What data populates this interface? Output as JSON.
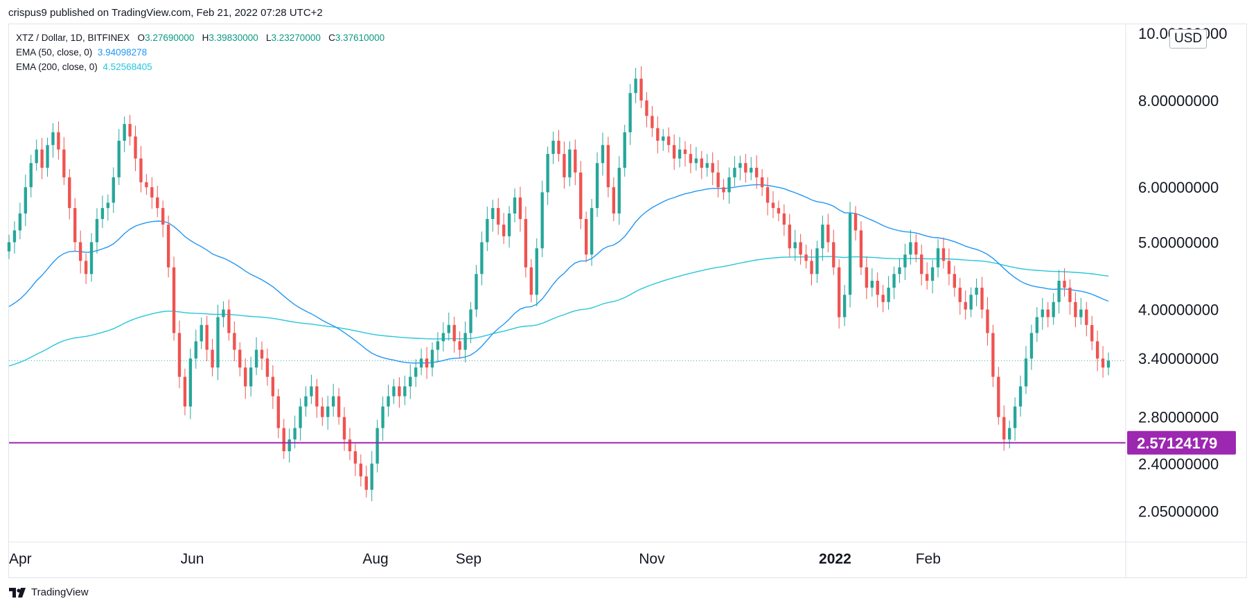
{
  "header": {
    "publisher_line": "crispus9 published on TradingView.com, Feb 21, 2022 07:28 UTC+2"
  },
  "legend": {
    "symbol": "XTZ / Dollar, 1D, BITFINEX",
    "open_label": "O",
    "open": "3.27690000",
    "high_label": "H",
    "high": "3.39830000",
    "low_label": "L",
    "low": "3.23270000",
    "close_label": "C",
    "close": "3.37610000",
    "ema50_label": "EMA (50, close, 0)",
    "ema50_value": "3.94098278",
    "ema200_label": "EMA (200, close, 0)",
    "ema200_value": "4.52568405"
  },
  "currency_button": "USD",
  "brand": {
    "name": "TradingView"
  },
  "colors": {
    "up": "#26a69a",
    "down": "#ef5350",
    "ema50": "#2196f3",
    "ema200": "#26c6da",
    "support": "#9c27b0",
    "last_price_line": "#26a69a"
  },
  "chart_data": {
    "type": "candlestick",
    "y_scale": "log",
    "y_ticks": [
      "10.00000000",
      "8.00000000",
      "6.00000000",
      "5.00000000",
      "4.00000000",
      "3.40000000",
      "2.80000000",
      "2.40000000",
      "2.05000000"
    ],
    "x_ticks": [
      "Apr",
      "Jun",
      "Aug",
      "Sep",
      "Nov",
      "2022",
      "Feb"
    ],
    "ylim": [
      1.85,
      10.3
    ],
    "horizontal_level": {
      "value": 2.57124179,
      "label": "2.57124179"
    },
    "last_close": 3.3761,
    "closes": [
      5.0,
      5.2,
      5.5,
      6.0,
      6.5,
      6.8,
      6.4,
      6.9,
      7.2,
      6.8,
      6.2,
      5.6,
      5.0,
      4.7,
      4.5,
      5.0,
      5.4,
      5.6,
      5.7,
      6.2,
      7.0,
      7.4,
      7.1,
      6.6,
      6.1,
      6.0,
      5.8,
      5.6,
      5.3,
      4.6,
      3.7,
      3.2,
      2.9,
      3.4,
      3.6,
      3.8,
      3.5,
      3.3,
      3.9,
      4.0,
      3.7,
      3.5,
      3.3,
      3.1,
      3.3,
      3.5,
      3.4,
      3.2,
      3.0,
      2.7,
      2.5,
      2.6,
      2.7,
      2.9,
      3.0,
      3.1,
      2.9,
      2.8,
      2.9,
      3.0,
      2.8,
      2.6,
      2.5,
      2.4,
      2.3,
      2.2,
      2.4,
      2.7,
      2.9,
      3.0,
      3.1,
      3.0,
      3.1,
      3.2,
      3.3,
      3.4,
      3.3,
      3.5,
      3.6,
      3.7,
      3.8,
      3.6,
      3.5,
      3.7,
      4.0,
      4.5,
      5.0,
      5.4,
      5.6,
      5.3,
      5.1,
      5.5,
      5.8,
      5.4,
      4.6,
      4.2,
      4.9,
      5.9,
      6.7,
      7.0,
      6.7,
      6.2,
      6.8,
      6.3,
      5.4,
      4.8,
      5.6,
      6.5,
      6.9,
      6.0,
      5.5,
      6.4,
      7.2,
      8.2,
      8.6,
      8.0,
      7.6,
      7.3,
      7.0,
      7.1,
      6.9,
      6.6,
      6.8,
      6.7,
      6.5,
      6.6,
      6.4,
      6.5,
      6.3,
      6.0,
      5.9,
      6.2,
      6.4,
      6.5,
      6.3,
      6.4,
      6.2,
      6.0,
      5.7,
      5.6,
      5.5,
      5.3,
      4.9,
      5.0,
      4.8,
      4.7,
      4.5,
      4.9,
      5.3,
      5.0,
      4.6,
      3.9,
      4.2,
      5.5,
      5.2,
      4.6,
      4.3,
      4.4,
      4.2,
      4.1,
      4.3,
      4.5,
      4.6,
      4.8,
      5.0,
      4.8,
      4.5,
      4.4,
      4.6,
      4.9,
      4.7,
      4.5,
      4.3,
      4.1,
      4.0,
      4.2,
      4.3,
      4.0,
      3.7,
      3.2,
      2.8,
      2.6,
      2.7,
      2.9,
      3.1,
      3.4,
      3.7,
      3.9,
      4.0,
      3.9,
      4.1,
      4.4,
      4.3,
      4.1,
      3.9,
      4.0,
      3.8,
      3.6,
      3.4,
      3.3,
      3.3761
    ],
    "series": [
      {
        "name": "EMA (50, close, 0)",
        "last": 3.94098278
      },
      {
        "name": "EMA (200, close, 0)",
        "last": 4.52568405
      }
    ]
  }
}
